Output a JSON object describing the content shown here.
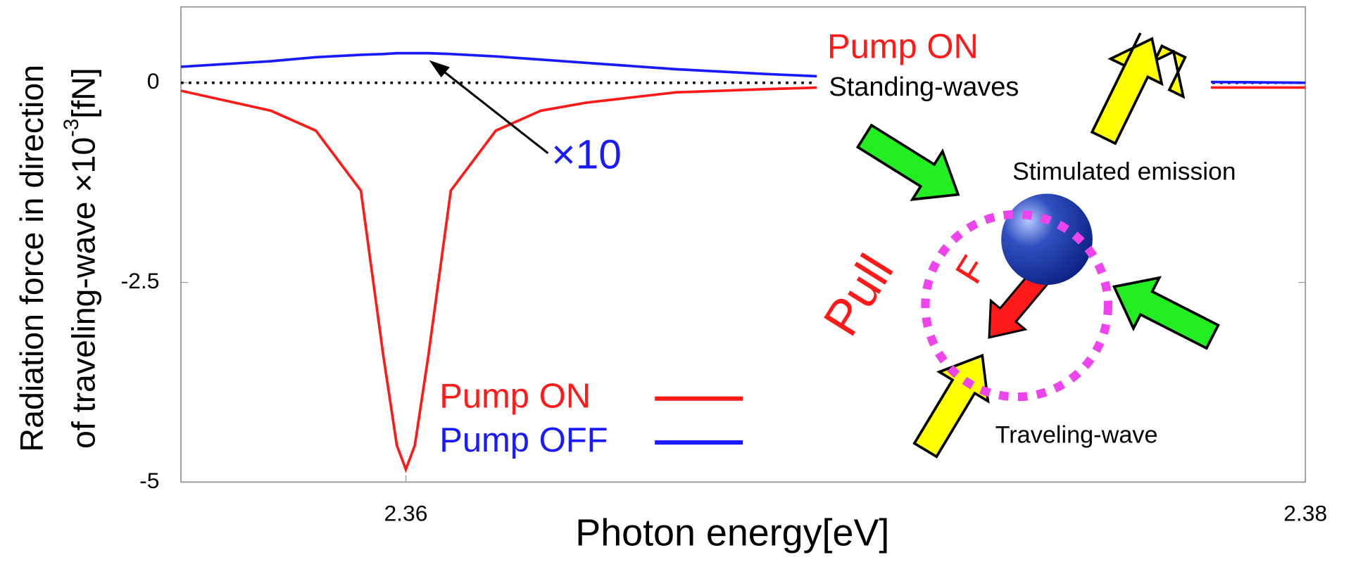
{
  "chart_data": {
    "type": "line",
    "x_label": "Photon energy[eV]",
    "y_label": [
      "Radiation force in direction",
      "of traveling-wave ×10"
    ],
    "y_label_superscript": "-3",
    "y_label_unit": "[fN]",
    "x": [
      2.355,
      2.357,
      2.358,
      2.359,
      2.3595,
      2.3598,
      2.36,
      2.3602,
      2.3605,
      2.361,
      2.362,
      2.363,
      2.364,
      2.366,
      2.368,
      2.3692,
      2.373,
      2.3779,
      2.38
    ],
    "series": [
      {
        "name": "Pump ON",
        "color": "#ff1a1a",
        "values": [
          -0.1,
          -0.35,
          -0.6,
          -1.35,
          -3.42,
          -4.54,
          -4.84,
          -4.54,
          -3.42,
          -1.35,
          -0.6,
          -0.35,
          -0.25,
          -0.12,
          -0.08,
          -0.06,
          null,
          -0.06,
          -0.06
        ]
      },
      {
        "name": "Pump OFF",
        "color": "#1a1aff",
        "values": [
          0.2,
          0.27,
          0.32,
          0.35,
          0.36,
          0.37,
          0.37,
          0.37,
          0.37,
          0.36,
          0.33,
          0.29,
          0.25,
          0.17,
          0.11,
          0.08,
          null,
          0.01,
          0.0
        ]
      }
    ],
    "xlim": [
      2.355,
      2.38
    ],
    "xticks": [
      2.36,
      2.38
    ],
    "ylim": [
      -5,
      0.95
    ],
    "yticks": [
      0,
      -2.5,
      -5
    ],
    "reference_line": 0,
    "grid": false,
    "legend": "bottom-left",
    "annotation": {
      "text": "×10",
      "color": "#1a1aff"
    },
    "inset": {
      "pump": "Pump ON",
      "standing": "Standing-waves",
      "stimulated": "Stimulated emission",
      "pull": "Pull",
      "force": "F",
      "traveling": "Traveling-wave"
    }
  }
}
